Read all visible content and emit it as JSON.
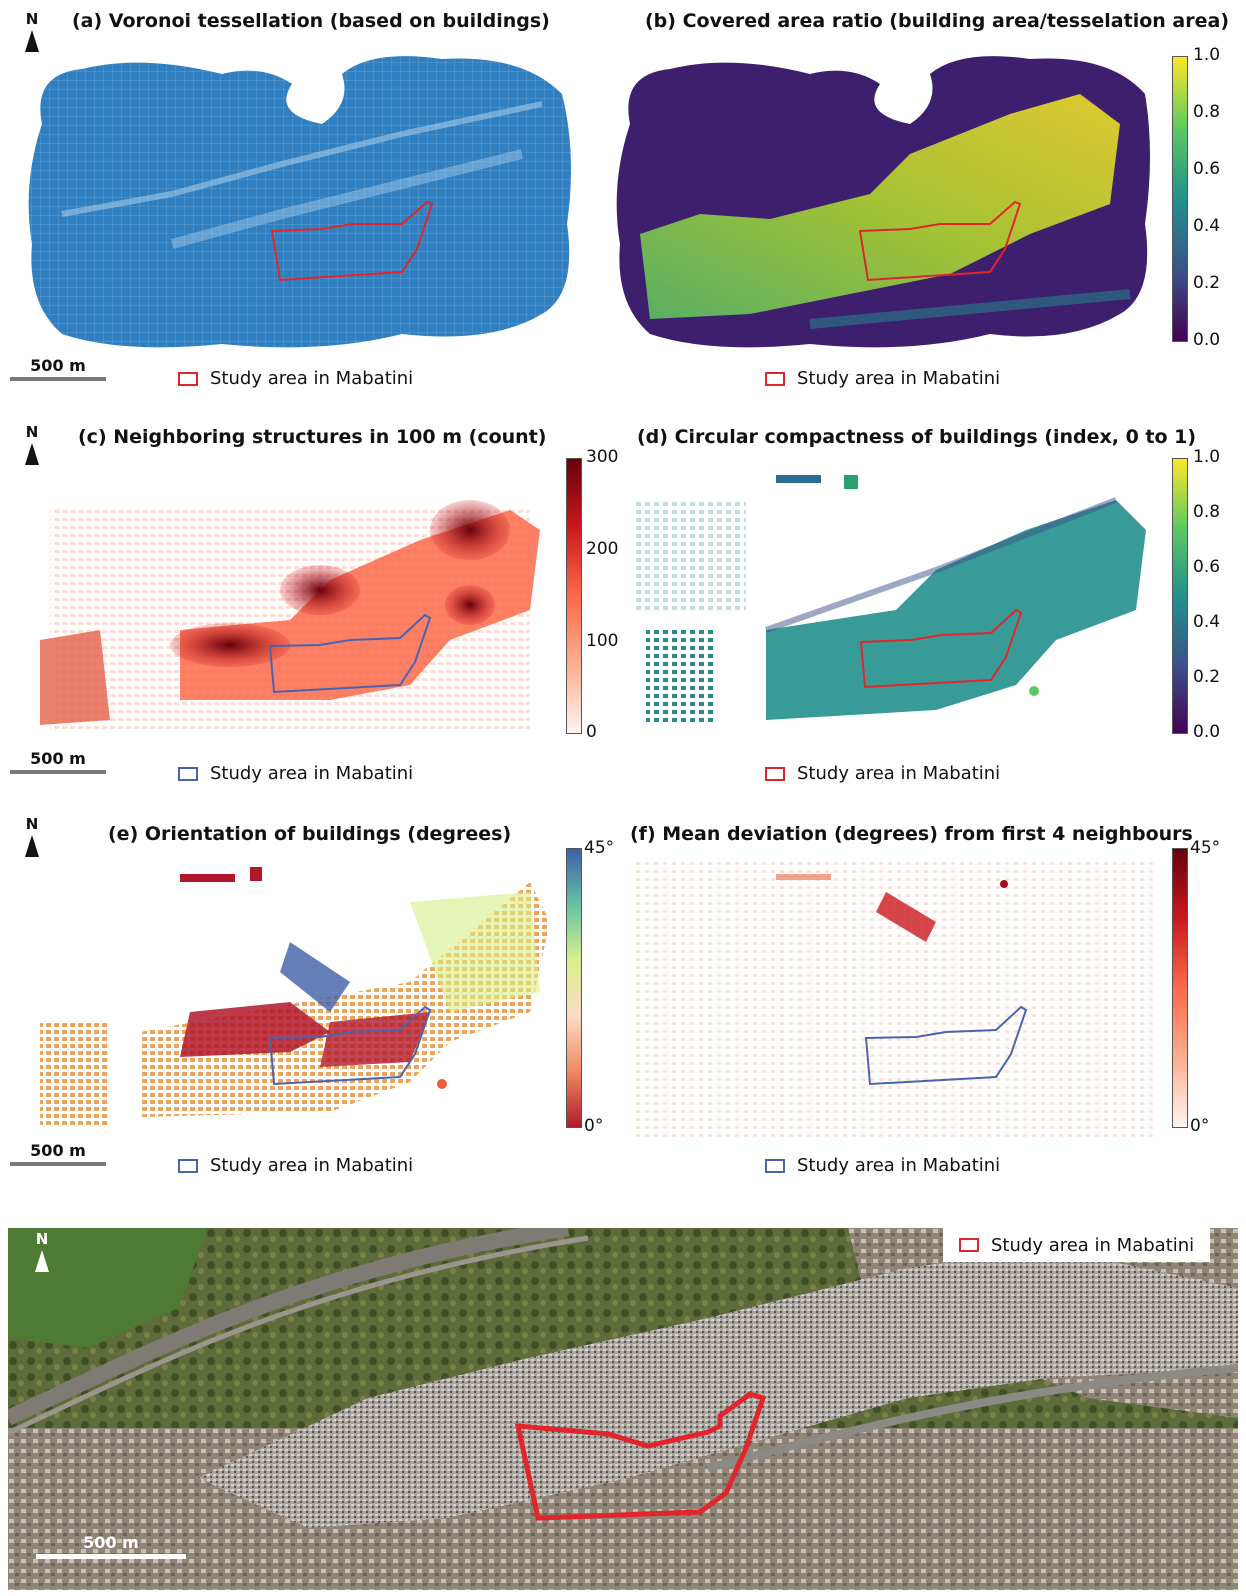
{
  "panels": {
    "a": {
      "title": "(a) Voronoi tessellation (based on buildings)"
    },
    "b": {
      "title": "(b) Covered area ratio (building area/tesselation area)",
      "ticks": [
        "1.0",
        "0.8",
        "0.6",
        "0.4",
        "0.2",
        "0.0"
      ]
    },
    "c": {
      "title": "(c) Neighboring structures in 100 m (count)",
      "ticks": [
        "300",
        "200",
        "100",
        "0"
      ]
    },
    "d": {
      "title": "(d) Circular compactness of buildings (index, 0 to 1)",
      "ticks": [
        "1.0",
        "0.8",
        "0.6",
        "0.4",
        "0.2",
        "0.0"
      ]
    },
    "e": {
      "title": "(e) Orientation of buildings (degrees)",
      "ticks": [
        "45°",
        "0°"
      ]
    },
    "f": {
      "title": "(f) Mean deviation (degrees) from first 4 neighbours",
      "ticks": [
        "45°",
        "0°"
      ]
    }
  },
  "north_label": "N",
  "scale_label": "500 m",
  "legend_label": "Study area in Mabatini",
  "colors": {
    "voronoi_blue": "#2f7fc1",
    "study_red": "#e0262b",
    "study_blue": "#4a63b0",
    "viridis": [
      "#440154",
      "#3b528b",
      "#21918c",
      "#5ec962",
      "#fde725"
    ],
    "reds": [
      "#fff5f0",
      "#fcae91",
      "#fb6a4a",
      "#cb181d",
      "#67000d"
    ],
    "spectral": [
      "#b2182b",
      "#ef8a62",
      "#fddbc7",
      "#d9ef8b",
      "#66c2a5",
      "#3f5fa8"
    ]
  }
}
